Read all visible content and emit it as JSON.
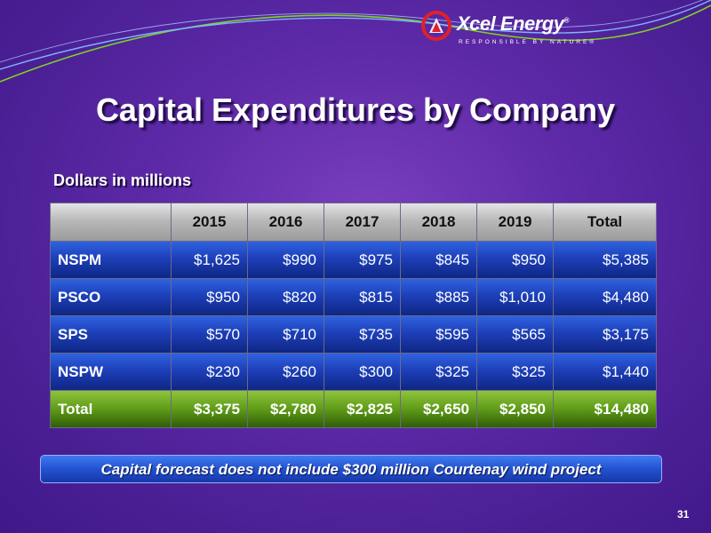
{
  "logo": {
    "name": "Xcel Energy",
    "registered": "®",
    "tagline": "RESPONSIBLE BY NATURE®"
  },
  "title": "Capital Expenditures by Company",
  "subtitle": "Dollars in millions",
  "table": {
    "headers": [
      "",
      "2015",
      "2016",
      "2017",
      "2018",
      "2019",
      "Total"
    ],
    "rows": [
      {
        "name": "NSPM",
        "values": [
          "$1,625",
          "$990",
          "$975",
          "$845",
          "$950",
          "$5,385"
        ]
      },
      {
        "name": "PSCO",
        "values": [
          "$950",
          "$820",
          "$815",
          "$885",
          "$1,010",
          "$4,480"
        ]
      },
      {
        "name": "SPS",
        "values": [
          "$570",
          "$710",
          "$735",
          "$595",
          "$565",
          "$3,175"
        ]
      },
      {
        "name": "NSPW",
        "values": [
          "$230",
          "$260",
          "$300",
          "$325",
          "$325",
          "$1,440"
        ]
      }
    ],
    "total": {
      "name": "Total",
      "values": [
        "$3,375",
        "$2,780",
        "$2,825",
        "$2,650",
        "$2,850",
        "$14,480"
      ]
    }
  },
  "note": "Capital forecast does not include $300 million Courtenay wind project",
  "page_number": "31",
  "colors": {
    "background": "#5e2aa8",
    "header_row": "#b8b8b8",
    "data_row": "#1d3fb8",
    "total_row": "#5e9a18",
    "logo_red": "#e0202a",
    "wave_green": "#7ed321",
    "wave_blue": "#7fb3ff"
  }
}
